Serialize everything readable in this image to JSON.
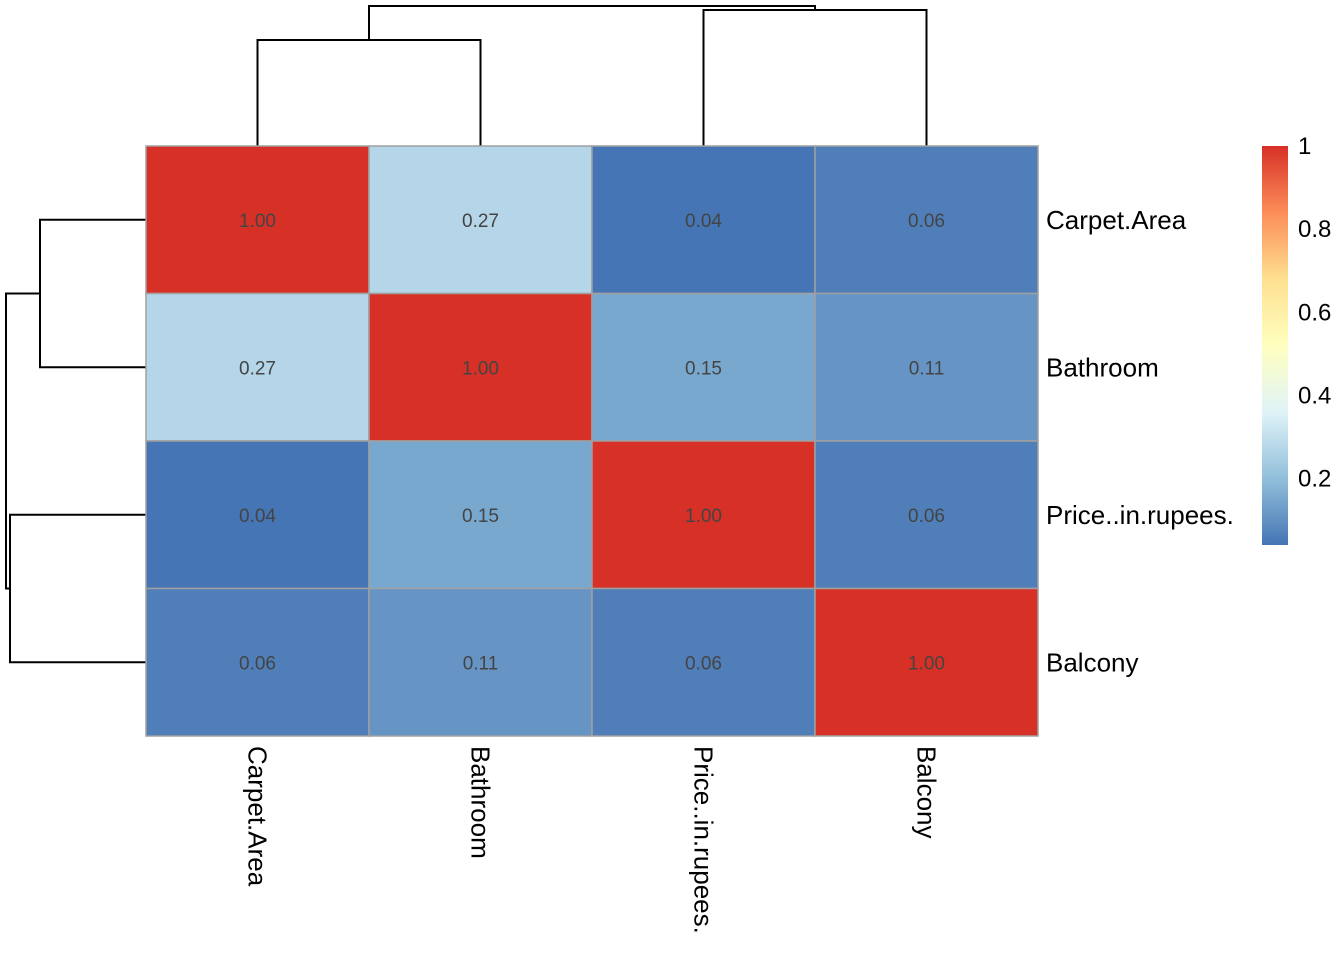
{
  "chart_data": {
    "type": "heatmap",
    "title": "",
    "rows": [
      "Carpet.Area",
      "Bathroom",
      "Price..in.rupees.",
      "Balcony"
    ],
    "columns": [
      "Carpet.Area",
      "Bathroom",
      "Price..in.rupees.",
      "Balcony"
    ],
    "values": [
      [
        1.0,
        0.27,
        0.04,
        0.06
      ],
      [
        0.27,
        1.0,
        0.15,
        0.11
      ],
      [
        0.04,
        0.15,
        1.0,
        0.06
      ],
      [
        0.06,
        0.11,
        0.06,
        1.0
      ]
    ],
    "cell_labels": [
      [
        "1.00",
        "0.27",
        "0.04",
        "0.06"
      ],
      [
        "0.27",
        "1.00",
        "0.15",
        "0.11"
      ],
      [
        "0.04",
        "0.15",
        "1.00",
        "0.06"
      ],
      [
        "0.06",
        "0.11",
        "0.06",
        "1.00"
      ]
    ],
    "color_scale": {
      "min": 0.04,
      "max": 1.0,
      "colors": [
        "#4575b4",
        "#91bfdb",
        "#e0f3f8",
        "#ffffbf",
        "#fee090",
        "#fc8d59",
        "#d73027"
      ],
      "ticks": [
        0.2,
        0.4,
        0.6,
        0.8,
        1
      ],
      "tick_labels": [
        "0.2",
        "0.4",
        "0.6",
        "0.8",
        "1"
      ]
    },
    "legend_position": "right",
    "cell_border_color": "#a0a0a0",
    "row_dendrogram": "left",
    "column_dendrogram": "top"
  }
}
